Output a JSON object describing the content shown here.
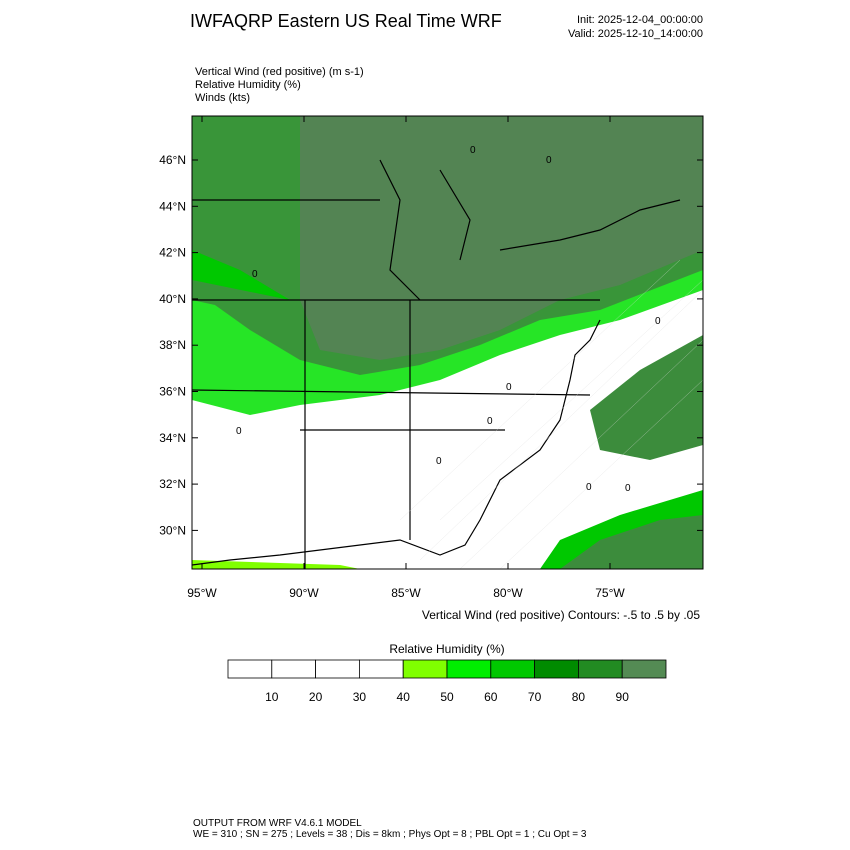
{
  "header": {
    "title": "IWFAQRP Eastern US Real Time WRF",
    "init": "Init: 2025-12-04_00:00:00",
    "valid": "Valid: 2025-12-10_14:00:00"
  },
  "fields": [
    "Vertical Wind (red positive)   (m s-1)",
    "Relative Humidity   (%)",
    "Winds   (kts)"
  ],
  "map": {
    "lat_ticks": [
      {
        "value": 46,
        "label": "46°N"
      },
      {
        "value": 44,
        "label": "44°N"
      },
      {
        "value": 42,
        "label": "42°N"
      },
      {
        "value": 40,
        "label": "40°N"
      },
      {
        "value": 38,
        "label": "38°N"
      },
      {
        "value": 36,
        "label": "36°N"
      },
      {
        "value": 34,
        "label": "34°N"
      },
      {
        "value": 32,
        "label": "32°N"
      },
      {
        "value": 30,
        "label": "30°N"
      }
    ],
    "lon_ticks": [
      {
        "value": 95,
        "label": "95°W"
      },
      {
        "value": 90,
        "label": "90°W"
      },
      {
        "value": 85,
        "label": "85°W"
      },
      {
        "value": 80,
        "label": "80°W"
      },
      {
        "value": 75,
        "label": "75°W"
      }
    ],
    "contour_labels": [
      "0",
      "0",
      "0",
      "0",
      "0",
      "0",
      "0",
      "0",
      "0",
      "0"
    ],
    "contour_note": "Vertical Wind (red positive) Contours: -.5 to .5 by .05"
  },
  "colorbar": {
    "title": "Relative Humidity  (%)",
    "ticks": [
      10,
      20,
      30,
      40,
      50,
      60,
      70,
      80,
      90
    ],
    "colors": [
      "#ffffff",
      "#ffffff",
      "#ffffff",
      "#ffffff",
      "#80ff00",
      "#00ee00",
      "#00c800",
      "#008b00",
      "#228b22",
      "#548b54"
    ]
  },
  "footer": {
    "line1": "OUTPUT FROM WRF V4.6.1 MODEL",
    "line2": "WE = 310 ; SN = 275 ; Levels = 38 ; Dis = 8km ; Phys Opt = 8 ; PBL Opt = 1 ; Cu Opt = 3"
  }
}
